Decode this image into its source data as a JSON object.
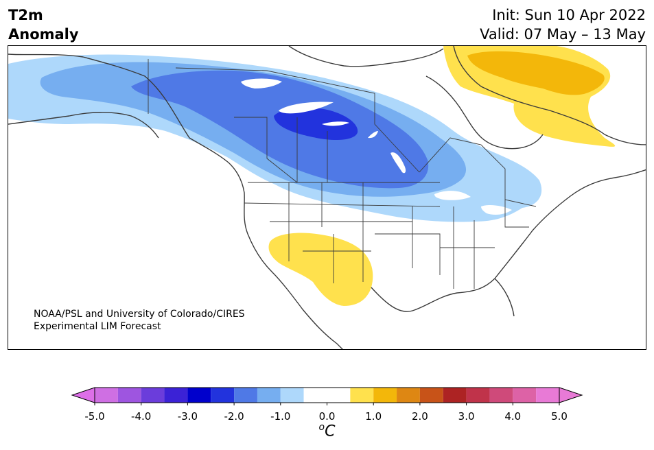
{
  "header": {
    "title_line1": "T2m",
    "title_line2": "Anomaly",
    "init_text": "Init: Sun 10 Apr 2022",
    "valid_text": "Valid: 07 May – 13 May"
  },
  "credit": {
    "line1": "NOAA/PSL and University of Colorado/CIRES",
    "line2": "Experimental LIM Forecast"
  },
  "colorbar": {
    "unit_base": "C",
    "unit_sup": "o",
    "tick_labels": [
      "-5.0",
      "-4.0",
      "-3.0",
      "-2.0",
      "-1.0",
      "0.0",
      "1.0",
      "2.0",
      "3.0",
      "4.0",
      "5.0"
    ],
    "levels": [
      -5.0,
      -4.5,
      -4.0,
      -3.5,
      -3.0,
      -2.5,
      -2.0,
      -1.5,
      -1.0,
      -0.5,
      0.5,
      1.0,
      1.5,
      2.0,
      2.5,
      3.0,
      3.5,
      4.0,
      4.5,
      5.0
    ],
    "under_color": "#dd6fe8",
    "over_color": "#e87ad6",
    "colors": [
      "#cf6fe3",
      "#9e55e0",
      "#6b3ddb",
      "#3b22d6",
      "#0000cc",
      "#2233dd",
      "#4f79e6",
      "#76aef0",
      "#aed8fb",
      "#ffffff",
      "#ffe14d",
      "#f3b70a",
      "#de8713",
      "#c85318",
      "#ad2323",
      "#c0334a",
      "#cf4a7a",
      "#dd62a6",
      "#e87ad6"
    ]
  },
  "map": {
    "anomaly_colors": {
      "c1": "#aed8fb",
      "c2": "#76aef0",
      "c3": "#4f79e6",
      "c4": "#2233dd",
      "w1": "#ffe14d",
      "w2": "#f3b70a"
    },
    "coastline_color": "#3a3a3a"
  }
}
